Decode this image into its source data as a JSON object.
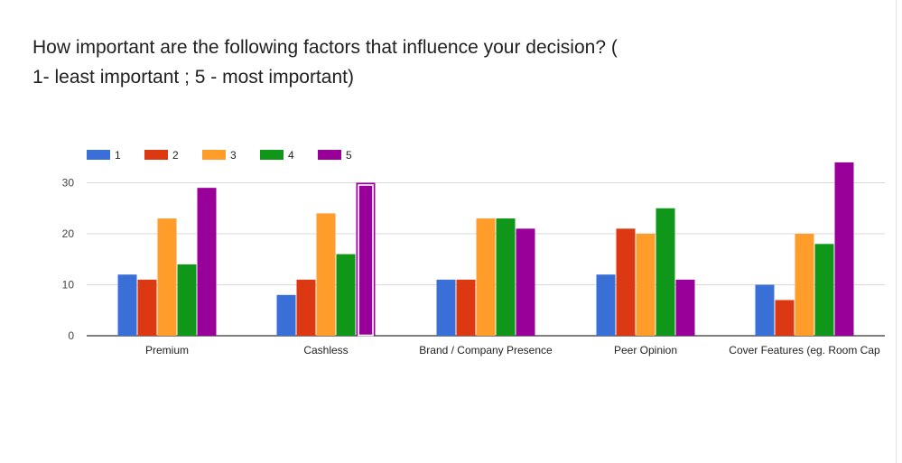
{
  "question": {
    "line1": "How important are the following factors that influence your decision? (",
    "line2": "1- least important ; 5 - most important)"
  },
  "chart_data": {
    "type": "bar",
    "title": "How important are the following factors that influence your decision? ( 1- least important ; 5 - most important)",
    "categories": [
      "Premium",
      "Cashless",
      "Brand / Company Presence",
      "Peer Opinion",
      "Cover Features (eg. Room Cap"
    ],
    "series": [
      {
        "name": "1",
        "color": "#3a6fd8",
        "values": [
          12,
          8,
          11,
          12,
          10
        ]
      },
      {
        "name": "2",
        "color": "#dc3912",
        "values": [
          11,
          11,
          11,
          21,
          7
        ]
      },
      {
        "name": "3",
        "color": "#ff9c2a",
        "values": [
          23,
          24,
          23,
          20,
          20
        ]
      },
      {
        "name": "4",
        "color": "#109618",
        "values": [
          14,
          16,
          23,
          25,
          18
        ]
      },
      {
        "name": "5",
        "color": "#990099",
        "values": [
          29,
          30,
          21,
          11,
          34
        ]
      }
    ],
    "yticks": [
      0,
      10,
      20,
      30
    ],
    "ylim": [
      0,
      35
    ],
    "grid": true,
    "legend_position": "top-left",
    "highlight": {
      "series": 4,
      "category": 1
    }
  }
}
